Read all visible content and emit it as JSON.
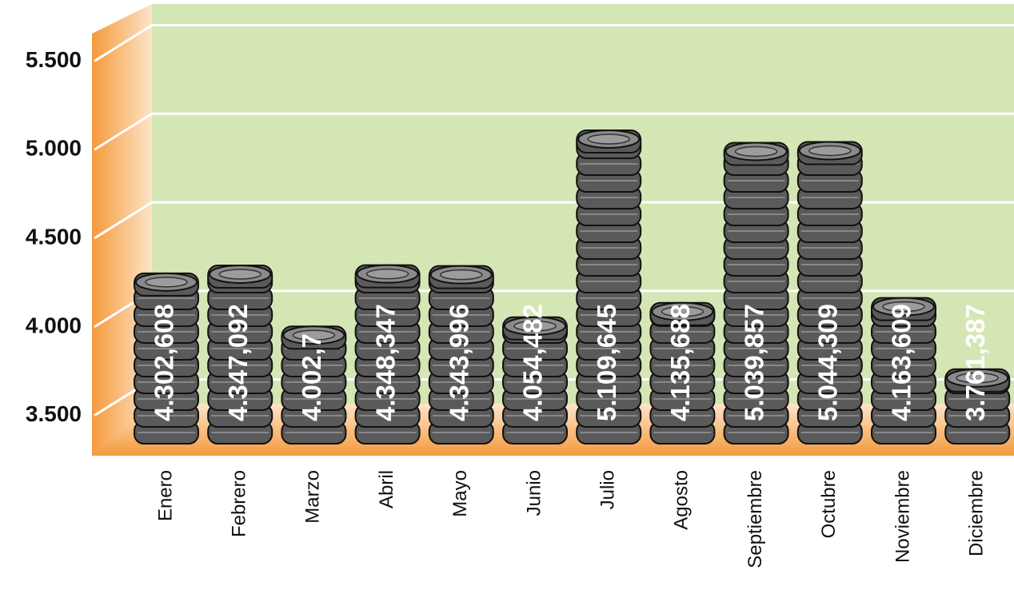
{
  "chart_data": {
    "type": "bar",
    "categories": [
      "Enero",
      "Febrero",
      "Marzo",
      "Abril",
      "Mayo",
      "Junio",
      "Julio",
      "Agosto",
      "Septiembre",
      "Octubre",
      "Noviembre",
      "Diciembre"
    ],
    "values": [
      4302.608,
      4347.092,
      4002.7,
      4348.347,
      4343.996,
      4054.482,
      5109.645,
      4135.688,
      5039.857,
      5044.309,
      4163.609,
      3761.387
    ],
    "value_labels": [
      "4.302,608",
      "4.347,092",
      "4.002,7",
      "4.348,347",
      "4.343,996",
      "4.054,482",
      "5.109,645",
      "4.135,688",
      "5.039,857",
      "5.044,309",
      "4.163,609",
      "3.761,387"
    ],
    "color": "#5a5a5a",
    "ylim": [
      3300,
      5800
    ],
    "yticks": [
      {
        "value": 3500,
        "label": "3.500"
      },
      {
        "value": 4000,
        "label": "4.000"
      },
      {
        "value": 4500,
        "label": "4.500"
      },
      {
        "value": 5000,
        "label": "5.000"
      },
      {
        "value": 5500,
        "label": "5.500"
      }
    ],
    "grid": true
  }
}
